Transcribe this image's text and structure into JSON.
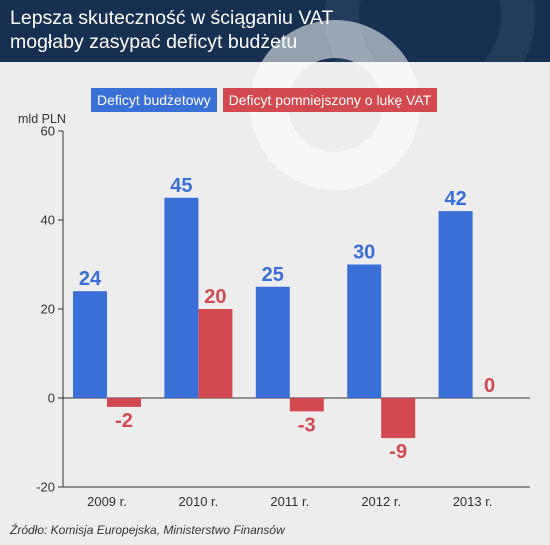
{
  "title": "Lepsza skuteczność w ściąganiu VAT mogłaby zasypać deficyt budżetu",
  "source": "Źródło: Komisja Europejska, Ministerstwo Finansów",
  "chart_data": {
    "type": "bar",
    "categories": [
      "2009 r.",
      "2010 r.",
      "2011 r.",
      "2012 r.",
      "2013 r."
    ],
    "series": [
      {
        "name": "Deficyt budżetowy",
        "color": "#3a6fd8",
        "values": [
          24,
          45,
          25,
          30,
          42
        ]
      },
      {
        "name": "Deficyt pomniejszony o lukę VAT",
        "color": "#d24a4f",
        "values": [
          -2,
          20,
          -3,
          -9,
          0
        ]
      }
    ],
    "ylabel": "mld PLN",
    "ylim": [
      -20,
      60
    ],
    "yticks": [
      -20,
      0,
      20,
      40,
      60
    ],
    "grid": false,
    "legend": "top-left"
  }
}
